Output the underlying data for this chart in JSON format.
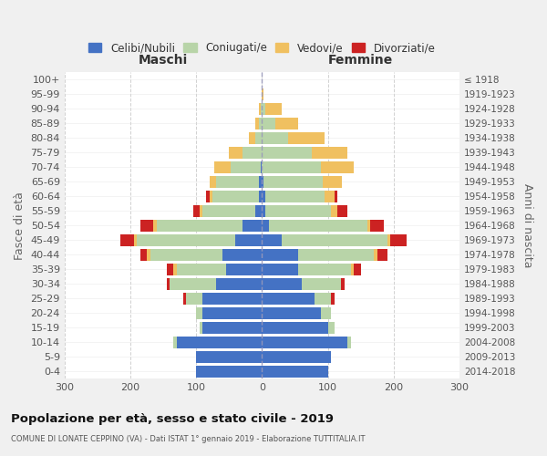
{
  "age_groups": [
    "0-4",
    "5-9",
    "10-14",
    "15-19",
    "20-24",
    "25-29",
    "30-34",
    "35-39",
    "40-44",
    "45-49",
    "50-54",
    "55-59",
    "60-64",
    "65-69",
    "70-74",
    "75-79",
    "80-84",
    "85-89",
    "90-94",
    "95-99",
    "100+"
  ],
  "birth_years": [
    "2014-2018",
    "2009-2013",
    "2004-2008",
    "1999-2003",
    "1994-1998",
    "1989-1993",
    "1984-1988",
    "1979-1983",
    "1974-1978",
    "1969-1973",
    "1964-1968",
    "1959-1963",
    "1954-1958",
    "1949-1953",
    "1944-1948",
    "1939-1943",
    "1934-1938",
    "1929-1933",
    "1924-1928",
    "1919-1923",
    "≤ 1918"
  ],
  "maschi": {
    "celibi": [
      100,
      100,
      130,
      90,
      90,
      90,
      70,
      55,
      60,
      40,
      30,
      10,
      5,
      5,
      2,
      0,
      0,
      0,
      0,
      0,
      0
    ],
    "coniugati": [
      0,
      0,
      5,
      5,
      10,
      25,
      70,
      75,
      110,
      150,
      130,
      80,
      70,
      65,
      45,
      30,
      10,
      5,
      2,
      0,
      0
    ],
    "vedovi": [
      0,
      0,
      0,
      0,
      0,
      0,
      0,
      5,
      5,
      5,
      5,
      5,
      5,
      10,
      25,
      20,
      10,
      5,
      2,
      0,
      0
    ],
    "divorziati": [
      0,
      0,
      0,
      0,
      0,
      5,
      5,
      10,
      10,
      20,
      20,
      10,
      5,
      0,
      0,
      0,
      0,
      0,
      0,
      0,
      0
    ]
  },
  "femmine": {
    "nubili": [
      100,
      105,
      130,
      100,
      90,
      80,
      60,
      55,
      55,
      30,
      10,
      5,
      5,
      2,
      0,
      0,
      0,
      0,
      0,
      0,
      0
    ],
    "coniugate": [
      0,
      0,
      5,
      10,
      15,
      25,
      60,
      80,
      115,
      160,
      150,
      100,
      90,
      90,
      90,
      75,
      40,
      20,
      5,
      0,
      0
    ],
    "vedove": [
      0,
      0,
      0,
      0,
      0,
      0,
      0,
      5,
      5,
      5,
      5,
      10,
      15,
      30,
      50,
      55,
      55,
      35,
      25,
      2,
      0
    ],
    "divorziate": [
      0,
      0,
      0,
      0,
      0,
      5,
      5,
      10,
      15,
      25,
      20,
      15,
      5,
      0,
      0,
      0,
      0,
      0,
      0,
      0,
      0
    ]
  },
  "colors": {
    "celibi_nubili": "#4472c4",
    "coniugati": "#b8d4a8",
    "vedovi": "#f0c060",
    "divorziati": "#cc2222"
  },
  "xlim": 300,
  "title": "Popolazione per età, sesso e stato civile - 2019",
  "subtitle": "COMUNE DI LONATE CEPPINO (VA) - Dati ISTAT 1° gennaio 2019 - Elaborazione TUTTITALIA.IT",
  "xlabel_left": "Maschi",
  "xlabel_right": "Femmine",
  "ylabel_left": "Fasce di età",
  "ylabel_right": "Anni di nascita",
  "legend_labels": [
    "Celibi/Nubili",
    "Coniugati/e",
    "Vedovi/e",
    "Divorziati/e"
  ],
  "bg_color": "#f0f0f0",
  "plot_bg_color": "#ffffff"
}
